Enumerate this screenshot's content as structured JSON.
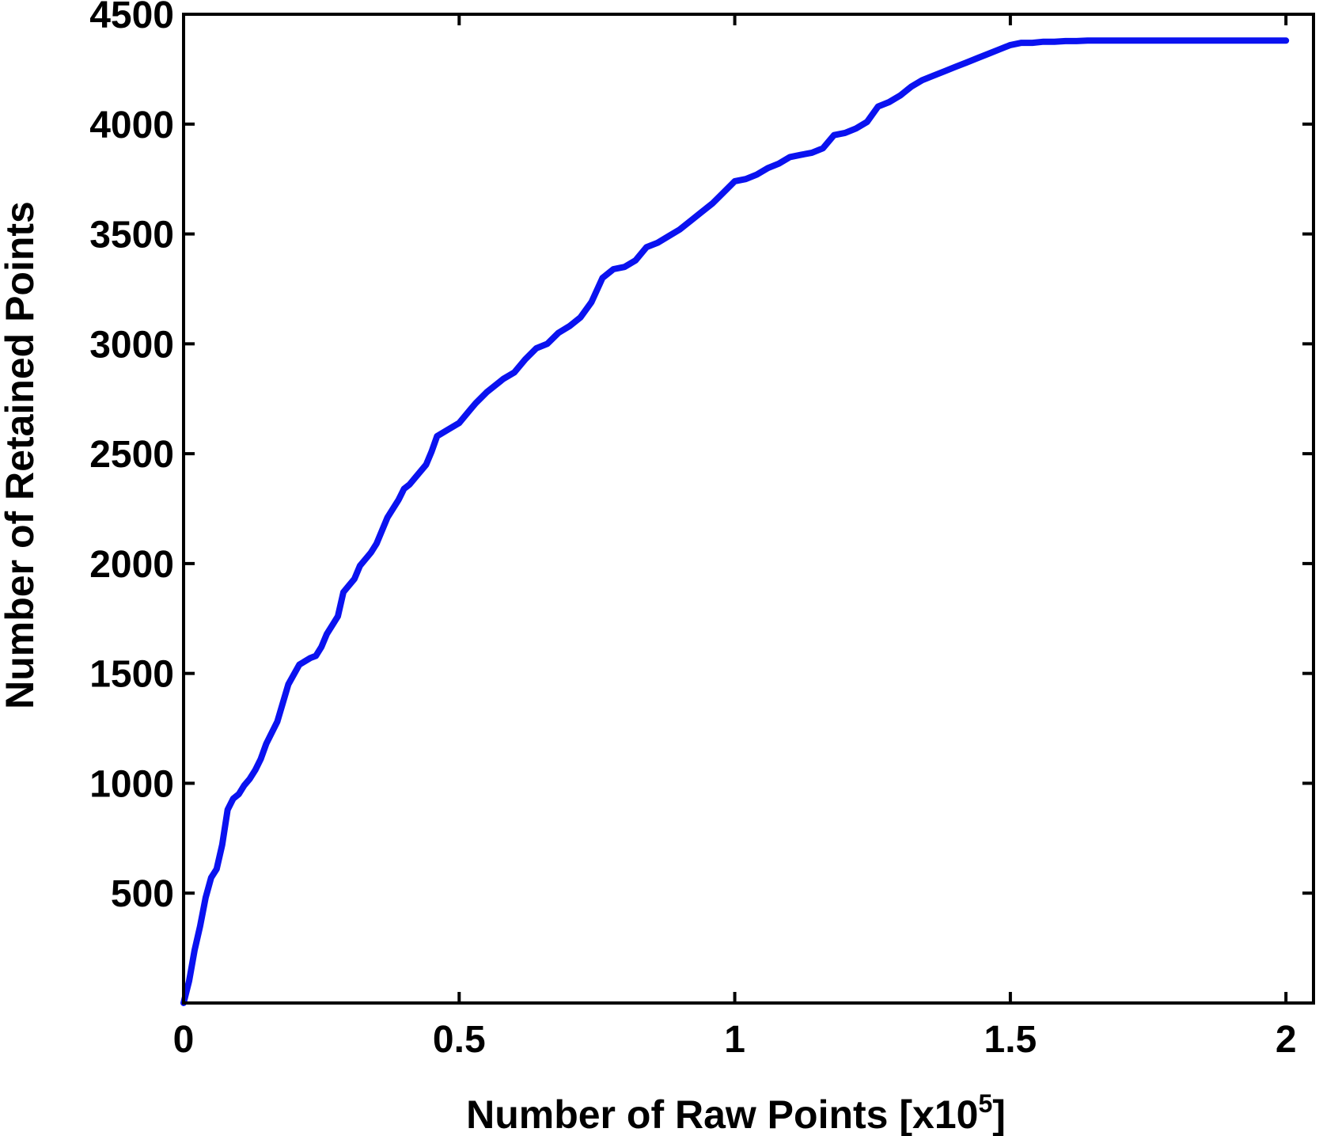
{
  "chart_data": {
    "type": "line",
    "title": "",
    "xlabel": "Number of Raw Points [x10",
    "xlabel_superscript": "5",
    "xlabel_suffix": "]",
    "ylabel": "Number of Retained Points",
    "xlim": [
      0,
      2.05
    ],
    "ylim": [
      0,
      4500
    ],
    "x_ticks": [
      0,
      0.5,
      1,
      1.5,
      2
    ],
    "x_tick_labels": [
      "0",
      "0.5",
      "1",
      "1.5",
      "2"
    ],
    "y_ticks": [
      500,
      1000,
      1500,
      2000,
      2500,
      3000,
      3500,
      4000,
      4500
    ],
    "y_tick_labels": [
      "500",
      "1000",
      "1500",
      "2000",
      "2500",
      "3000",
      "3500",
      "4000",
      "4500"
    ],
    "grid": false,
    "legend": "none",
    "series": [
      {
        "color": "#0a12f0",
        "x": [
          0,
          0.01,
          0.02,
          0.03,
          0.04,
          0.05,
          0.06,
          0.07,
          0.08,
          0.09,
          0.1,
          0.11,
          0.12,
          0.13,
          0.14,
          0.15,
          0.17,
          0.19,
          0.21,
          0.23,
          0.24,
          0.25,
          0.26,
          0.27,
          0.28,
          0.29,
          0.3,
          0.31,
          0.32,
          0.34,
          0.35,
          0.37,
          0.39,
          0.4,
          0.41,
          0.42,
          0.44,
          0.45,
          0.46,
          0.48,
          0.5,
          0.52,
          0.53,
          0.55,
          0.57,
          0.58,
          0.6,
          0.62,
          0.64,
          0.66,
          0.68,
          0.7,
          0.72,
          0.74,
          0.76,
          0.78,
          0.8,
          0.82,
          0.84,
          0.86,
          0.88,
          0.9,
          0.92,
          0.94,
          0.96,
          0.98,
          1.0,
          1.02,
          1.04,
          1.06,
          1.08,
          1.1,
          1.12,
          1.14,
          1.16,
          1.18,
          1.2,
          1.22,
          1.24,
          1.26,
          1.28,
          1.3,
          1.32,
          1.34,
          1.36,
          1.38,
          1.4,
          1.42,
          1.44,
          1.46,
          1.48,
          1.5,
          1.52,
          1.54,
          1.56,
          1.58,
          1.6,
          1.62,
          1.64,
          1.66,
          1.68,
          1.7,
          1.72,
          1.74,
          1.76,
          1.78,
          1.8,
          1.82,
          1.84,
          1.86,
          1.88,
          1.9,
          1.92,
          1.94,
          1.96,
          1.98,
          2.0
        ],
        "y": [
          0,
          100,
          240,
          350,
          480,
          570,
          610,
          720,
          880,
          930,
          950,
          990,
          1020,
          1060,
          1110,
          1180,
          1280,
          1450,
          1540,
          1570,
          1580,
          1620,
          1680,
          1720,
          1760,
          1870,
          1900,
          1930,
          1990,
          2050,
          2090,
          2210,
          2290,
          2340,
          2360,
          2390,
          2450,
          2510,
          2580,
          2610,
          2640,
          2700,
          2730,
          2780,
          2820,
          2840,
          2870,
          2930,
          2980,
          3000,
          3050,
          3080,
          3120,
          3190,
          3300,
          3340,
          3350,
          3380,
          3440,
          3460,
          3490,
          3520,
          3560,
          3600,
          3640,
          3690,
          3740,
          3750,
          3770,
          3800,
          3820,
          3850,
          3860,
          3870,
          3890,
          3950,
          3960,
          3980,
          4010,
          4080,
          4100,
          4130,
          4170,
          4200,
          4220,
          4240,
          4260,
          4280,
          4300,
          4320,
          4340,
          4360,
          4370,
          4370,
          4375,
          4375,
          4378,
          4378,
          4380,
          4380,
          4380,
          4380,
          4380,
          4380,
          4380,
          4380,
          4380,
          4380,
          4380,
          4380,
          4380,
          4380,
          4380,
          4380,
          4380,
          4380,
          4380
        ]
      }
    ]
  }
}
